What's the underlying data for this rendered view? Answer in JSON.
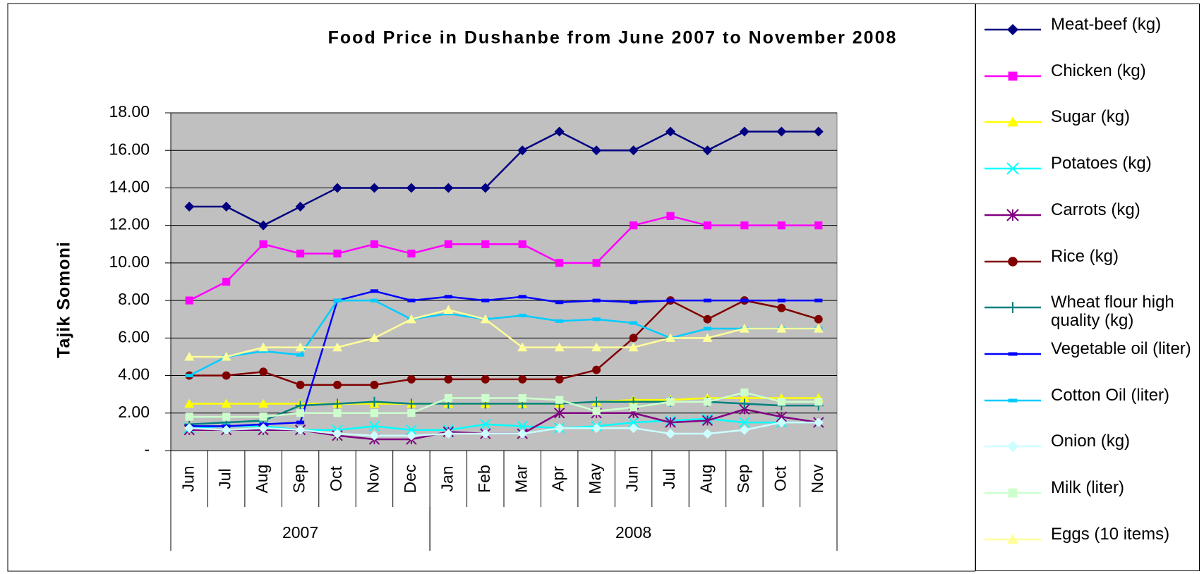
{
  "chart_data": {
    "type": "line",
    "title": "Food Price in Dushanbe from June 2007 to November 2008",
    "y_label": "Tajik Somoni",
    "categories": [
      "Jun",
      "Jul",
      "Aug",
      "Sep",
      "Oct",
      "Nov",
      "Dec",
      "Jan",
      "Feb",
      "Mar",
      "Apr",
      "May",
      "Jun",
      "Jul",
      "Aug",
      "Sep",
      "Oct",
      "Nov"
    ],
    "category_groups": [
      {
        "label": "2007",
        "span": 7
      },
      {
        "label": "2008",
        "span": 11
      }
    ],
    "ylim": [
      0,
      18
    ],
    "yticks": [
      {
        "value": 0,
        "label": "-"
      },
      {
        "value": 2,
        "label": "2.00"
      },
      {
        "value": 4,
        "label": "4.00"
      },
      {
        "value": 6,
        "label": "6.00"
      },
      {
        "value": 8,
        "label": "8.00"
      },
      {
        "value": 10,
        "label": "10.00"
      },
      {
        "value": 12,
        "label": "12.00"
      },
      {
        "value": 14,
        "label": "14.00"
      },
      {
        "value": 16,
        "label": "16.00"
      },
      {
        "value": 18,
        "label": "18.00"
      }
    ],
    "grid": true,
    "legend": "right",
    "series": [
      {
        "name": "Meat-beef (kg)",
        "color": "#000080",
        "marker": "diamond",
        "values": [
          13,
          13,
          12,
          13,
          14,
          14,
          14,
          14,
          14,
          16,
          17,
          16,
          16,
          17,
          16,
          17,
          17,
          17
        ]
      },
      {
        "name": "Chicken (kg)",
        "color": "#ff00ff",
        "marker": "square",
        "values": [
          8,
          9,
          11,
          10.5,
          10.5,
          11,
          10.5,
          11,
          11,
          11,
          10,
          10,
          12,
          12.5,
          12,
          12,
          12,
          12
        ]
      },
      {
        "name": "Sugar (kg)",
        "color": "#ffff00",
        "marker": "triangle",
        "values": [
          2.5,
          2.5,
          2.5,
          2.5,
          2.5,
          2.5,
          2.5,
          2.5,
          2.5,
          2.5,
          2.5,
          2.6,
          2.7,
          2.7,
          2.8,
          2.8,
          2.8,
          2.8
        ]
      },
      {
        "name": "Potatoes (kg)",
        "color": "#00ffff",
        "marker": "x",
        "values": [
          1.2,
          1.3,
          1.3,
          1.1,
          1.1,
          1.3,
          1.1,
          1.1,
          1.4,
          1.3,
          1.2,
          1.3,
          1.5,
          1.6,
          1.7,
          1.5,
          1.5,
          1.5
        ]
      },
      {
        "name": "Carrots (kg)",
        "color": "#800080",
        "marker": "star",
        "values": [
          1.1,
          1.1,
          1.1,
          1.1,
          0.8,
          0.6,
          0.6,
          1.0,
          0.9,
          0.9,
          2.0,
          2.0,
          2.0,
          1.5,
          1.6,
          2.2,
          1.8,
          1.5
        ]
      },
      {
        "name": "Rice (kg)",
        "color": "#800000",
        "marker": "circle",
        "values": [
          4,
          4,
          4.2,
          3.5,
          3.5,
          3.5,
          3.8,
          3.8,
          3.8,
          3.8,
          3.8,
          4.3,
          6,
          8,
          7,
          8,
          7.6,
          7
        ]
      },
      {
        "name": "Wheat flour high quality (kg)",
        "color": "#008080",
        "marker": "plus",
        "values": [
          1.4,
          1.5,
          1.6,
          2.4,
          2.5,
          2.6,
          2.5,
          2.5,
          2.5,
          2.5,
          2.5,
          2.6,
          2.6,
          2.6,
          2.6,
          2.5,
          2.4,
          2.4
        ]
      },
      {
        "name": "Vegetable oil (liter)",
        "color": "#0000ff",
        "marker": "dash",
        "values": [
          1.3,
          1.3,
          1.4,
          1.5,
          8,
          8.5,
          8,
          8.2,
          8,
          8.2,
          7.9,
          8,
          7.9,
          8,
          8,
          8,
          8,
          8
        ]
      },
      {
        "name": "Cotton Oil (liter)",
        "color": "#00ccff",
        "marker": "dash",
        "values": [
          4,
          5,
          5.3,
          5.1,
          8,
          8,
          7,
          7.3,
          7,
          7.2,
          6.9,
          7,
          6.8,
          6,
          6.5,
          6.5,
          6.5,
          6.5
        ]
      },
      {
        "name": "Onion (kg)",
        "color": "#ccffff",
        "marker": "diamond",
        "values": [
          1.2,
          1.1,
          1.2,
          1.1,
          0.9,
          0.8,
          0.8,
          0.9,
          0.9,
          0.9,
          1.2,
          1.2,
          1.2,
          0.9,
          0.9,
          1.1,
          1.5,
          1.5
        ]
      },
      {
        "name": "Milk (liter)",
        "color": "#ccffcc",
        "marker": "square",
        "values": [
          1.8,
          1.8,
          1.8,
          2,
          2,
          2,
          2,
          2.8,
          2.8,
          2.8,
          2.7,
          2.1,
          2.3,
          2.6,
          2.6,
          3.1,
          2.6,
          2.6
        ]
      },
      {
        "name": "Eggs (10 items)",
        "color": "#ffff99",
        "marker": "triangle",
        "values": [
          5,
          5,
          5.5,
          5.5,
          5.5,
          6,
          7,
          7.5,
          7,
          5.5,
          5.5,
          5.5,
          5.5,
          6,
          6,
          6.5,
          6.5,
          6.5
        ]
      }
    ]
  }
}
